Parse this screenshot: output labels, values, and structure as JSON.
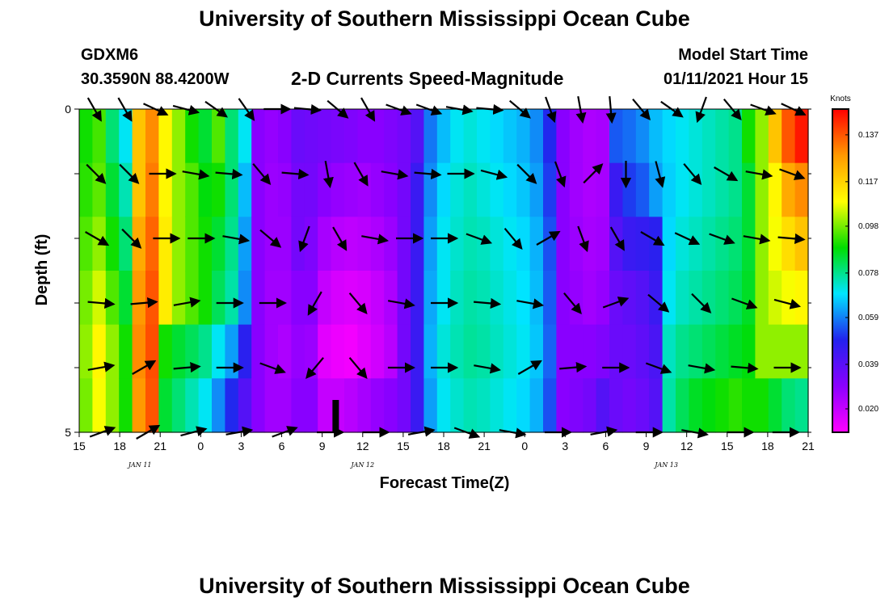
{
  "header": {
    "title": "University of Southern Mississippi Ocean Cube",
    "station_id": "GDXM6",
    "station_coords": "30.3590N 88.4200W",
    "plot_title": "2-D Currents Speed-Magnitude",
    "model_label": "Model Start Time",
    "model_time": "01/11/2021 Hour 15"
  },
  "footer": {
    "title": "University of Southern Mississippi Ocean Cube"
  },
  "colors": {
    "colormap": [
      "#ff00ff",
      "#8b00ff",
      "#2222ee",
      "#00e5ff",
      "#00dd00",
      "#ffff00",
      "#ff9900",
      "#ff0000"
    ],
    "arrow": "#000000",
    "now_marker": "#000000"
  },
  "chart_data": {
    "type": "heatmap",
    "xlabel": "Forecast Time(Z)",
    "ylabel": "Depth (ft)",
    "x_hours_range": [
      0,
      54
    ],
    "ylim": [
      0,
      5
    ],
    "y_ticks": [
      "0",
      "5"
    ],
    "x_ticks": [
      {
        "hour": 0,
        "label": "15"
      },
      {
        "hour": 3,
        "label": "18"
      },
      {
        "hour": 6,
        "label": "21"
      },
      {
        "hour": 9,
        "label": "0"
      },
      {
        "hour": 12,
        "label": "3"
      },
      {
        "hour": 15,
        "label": "6"
      },
      {
        "hour": 18,
        "label": "9"
      },
      {
        "hour": 21,
        "label": "12"
      },
      {
        "hour": 24,
        "label": "15"
      },
      {
        "hour": 27,
        "label": "18"
      },
      {
        "hour": 30,
        "label": "21"
      },
      {
        "hour": 33,
        "label": "0"
      },
      {
        "hour": 36,
        "label": "3"
      },
      {
        "hour": 39,
        "label": "6"
      },
      {
        "hour": 42,
        "label": "9"
      },
      {
        "hour": 45,
        "label": "12"
      },
      {
        "hour": 48,
        "label": "15"
      },
      {
        "hour": 51,
        "label": "18"
      },
      {
        "hour": 54,
        "label": "21"
      }
    ],
    "date_labels": [
      {
        "hour": 4.5,
        "label": "JAN 11"
      },
      {
        "hour": 21,
        "label": "JAN 12"
      },
      {
        "hour": 43.5,
        "label": "JAN 13"
      }
    ],
    "now_marker_hour": 19,
    "colorbar": {
      "title": "Knots",
      "min": 0.01,
      "max": 0.148,
      "ticks": [
        0.137,
        0.117,
        0.098,
        0.078,
        0.059,
        0.039,
        0.02
      ],
      "tick_labels": [
        "0.137",
        "0.117",
        "0.098",
        "0.078",
        "0.059",
        "0.039",
        "0.020"
      ]
    },
    "depth_levels": [
      0,
      1,
      2,
      3,
      4,
      5
    ],
    "speed_knots_by_hour": [
      [
        0.09,
        0.092,
        0.095,
        0.098,
        0.1,
        0.098
      ],
      [
        0.094,
        0.096,
        0.1,
        0.105,
        0.11,
        0.108
      ],
      [
        0.08,
        0.085,
        0.09,
        0.095,
        0.1,
        0.1
      ],
      [
        0.07,
        0.075,
        0.08,
        0.085,
        0.09,
        0.09
      ],
      [
        0.12,
        0.12,
        0.125,
        0.128,
        0.13,
        0.128
      ],
      [
        0.13,
        0.132,
        0.135,
        0.137,
        0.138,
        0.137
      ],
      [
        0.11,
        0.11,
        0.112,
        0.112,
        0.09,
        0.085
      ],
      [
        0.1,
        0.1,
        0.1,
        0.1,
        0.085,
        0.08
      ],
      [
        0.09,
        0.095,
        0.095,
        0.095,
        0.082,
        0.075
      ],
      [
        0.085,
        0.088,
        0.09,
        0.09,
        0.078,
        0.07
      ],
      [
        0.095,
        0.09,
        0.085,
        0.082,
        0.07,
        0.06
      ],
      [
        0.08,
        0.08,
        0.078,
        0.076,
        0.062,
        0.05
      ],
      [
        0.07,
        0.065,
        0.062,
        0.06,
        0.048,
        0.04
      ],
      [
        0.03,
        0.03,
        0.03,
        0.03,
        0.03,
        0.03
      ],
      [
        0.028,
        0.027,
        0.027,
        0.026,
        0.026,
        0.026
      ],
      [
        0.03,
        0.028,
        0.027,
        0.026,
        0.024,
        0.026
      ],
      [
        0.036,
        0.034,
        0.034,
        0.03,
        0.028,
        0.03
      ],
      [
        0.035,
        0.034,
        0.032,
        0.03,
        0.027,
        0.03
      ],
      [
        0.034,
        0.03,
        0.025,
        0.02,
        0.015,
        0.02
      ],
      [
        0.033,
        0.028,
        0.022,
        0.017,
        0.013,
        0.02
      ],
      [
        0.032,
        0.027,
        0.021,
        0.016,
        0.012,
        0.022
      ],
      [
        0.03,
        0.026,
        0.022,
        0.017,
        0.015,
        0.025
      ],
      [
        0.03,
        0.028,
        0.024,
        0.02,
        0.018,
        0.028
      ],
      [
        0.032,
        0.03,
        0.027,
        0.024,
        0.022,
        0.03
      ],
      [
        0.034,
        0.034,
        0.034,
        0.034,
        0.034,
        0.034
      ],
      [
        0.04,
        0.045,
        0.045,
        0.045,
        0.045,
        0.045
      ],
      [
        0.058,
        0.06,
        0.062,
        0.063,
        0.064,
        0.062
      ],
      [
        0.065,
        0.068,
        0.07,
        0.07,
        0.072,
        0.07
      ],
      [
        0.07,
        0.072,
        0.073,
        0.074,
        0.075,
        0.073
      ],
      [
        0.072,
        0.074,
        0.075,
        0.076,
        0.077,
        0.075
      ],
      [
        0.07,
        0.072,
        0.074,
        0.075,
        0.076,
        0.074
      ],
      [
        0.068,
        0.07,
        0.072,
        0.073,
        0.074,
        0.072
      ],
      [
        0.066,
        0.068,
        0.07,
        0.071,
        0.072,
        0.07
      ],
      [
        0.064,
        0.066,
        0.068,
        0.069,
        0.07,
        0.068
      ],
      [
        0.06,
        0.062,
        0.064,
        0.065,
        0.066,
        0.064
      ],
      [
        0.05,
        0.052,
        0.054,
        0.055,
        0.056,
        0.054
      ],
      [
        0.03,
        0.03,
        0.03,
        0.03,
        0.03,
        0.03
      ],
      [
        0.026,
        0.026,
        0.027,
        0.028,
        0.03,
        0.032
      ],
      [
        0.024,
        0.024,
        0.025,
        0.026,
        0.03,
        0.034
      ],
      [
        0.025,
        0.025,
        0.026,
        0.028,
        0.032,
        0.04
      ],
      [
        0.055,
        0.045,
        0.04,
        0.036,
        0.036,
        0.036
      ],
      [
        0.057,
        0.052,
        0.045,
        0.038,
        0.036,
        0.034
      ],
      [
        0.06,
        0.055,
        0.046,
        0.04,
        0.038,
        0.036
      ],
      [
        0.065,
        0.062,
        0.048,
        0.045,
        0.042,
        0.04
      ],
      [
        0.068,
        0.067,
        0.068,
        0.07,
        0.074,
        0.076
      ],
      [
        0.07,
        0.07,
        0.072,
        0.074,
        0.078,
        0.082
      ],
      [
        0.072,
        0.072,
        0.074,
        0.076,
        0.08,
        0.086
      ],
      [
        0.074,
        0.074,
        0.076,
        0.078,
        0.082,
        0.088
      ],
      [
        0.076,
        0.076,
        0.078,
        0.08,
        0.084,
        0.09
      ],
      [
        0.078,
        0.078,
        0.08,
        0.082,
        0.086,
        0.092
      ],
      [
        0.09,
        0.085,
        0.085,
        0.086,
        0.088,
        0.09
      ],
      [
        0.1,
        0.1,
        0.1,
        0.1,
        0.1,
        0.09
      ],
      [
        0.12,
        0.11,
        0.108,
        0.105,
        0.1,
        0.085
      ],
      [
        0.137,
        0.125,
        0.115,
        0.108,
        0.1,
        0.08
      ],
      [
        0.145,
        0.13,
        0.12,
        0.11,
        0.1,
        0.078
      ]
    ],
    "vector_direction_deg_by_depth_level": [
      [
        150,
        150,
        115,
        105,
        125,
        145,
        90,
        95,
        130,
        150,
        110,
        110,
        100,
        95,
        130,
        160,
        170,
        175,
        140,
        125,
        200,
        140,
        110,
        115
      ],
      [
        135,
        135,
        90,
        100,
        95,
        140,
        95,
        170,
        150,
        100,
        95,
        90,
        105,
        135,
        160,
        45,
        180,
        165,
        140,
        120,
        100,
        110
      ],
      [
        120,
        135,
        90,
        90,
        100,
        130,
        200,
        150,
        100,
        90,
        90,
        110,
        140,
        60,
        160,
        150,
        120,
        115,
        110,
        100,
        95
      ],
      [
        95,
        85,
        80,
        90,
        90,
        210,
        140,
        100,
        90,
        95,
        100,
        140,
        70,
        130,
        135,
        110,
        105
      ],
      [
        80,
        60,
        85,
        90,
        110,
        220,
        140,
        90,
        90,
        100,
        60,
        85,
        90,
        110,
        100,
        95,
        90
      ],
      [
        70,
        60,
        75,
        80,
        70,
        90,
        90,
        80,
        110,
        100,
        90,
        80,
        90,
        100,
        90,
        90
      ]
    ]
  }
}
